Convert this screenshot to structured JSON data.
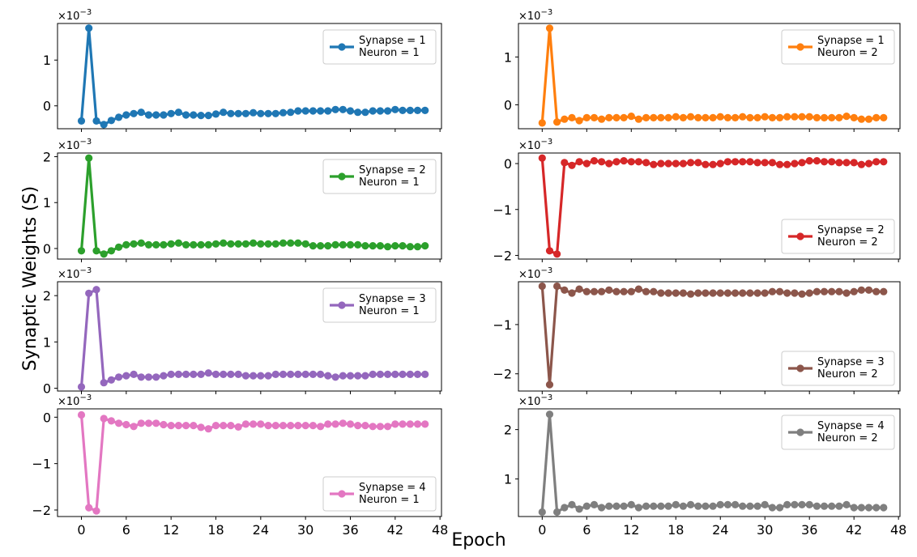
{
  "figure": {
    "ylabel": "Synaptic Weights (S)",
    "xlabel": "Epoch",
    "multiplier_base": "×10",
    "multiplier_exp": "−3"
  },
  "chart_data": [
    {
      "type": "line",
      "name": "Synapse = 1 / Neuron = 1",
      "legend": [
        "Synapse = 1",
        "Neuron = 1"
      ],
      "color": "#1f77b4",
      "legend_pos": "top-right",
      "xlim": [
        -3.2,
        48.2
      ],
      "ylim": [
        -0.5,
        1.8
      ],
      "yticks": [
        {
          "v": 0,
          "l": "0"
        },
        {
          "v": 1,
          "l": "1"
        }
      ],
      "show_xticklabels": false,
      "x": [
        0,
        1,
        2,
        3,
        4,
        5,
        6,
        7,
        8,
        9,
        10,
        11,
        12,
        13,
        14,
        15,
        16,
        17,
        18,
        19,
        20,
        21,
        22,
        23,
        24,
        25,
        26,
        27,
        28,
        29,
        30,
        31,
        32,
        33,
        34,
        35,
        36,
        37,
        38,
        39,
        40,
        41,
        42,
        43,
        44,
        45,
        46
      ],
      "y": [
        -0.33,
        1.7,
        -0.33,
        -0.41,
        -0.32,
        -0.25,
        -0.2,
        -0.17,
        -0.14,
        -0.2,
        -0.2,
        -0.2,
        -0.17,
        -0.14,
        -0.2,
        -0.2,
        -0.21,
        -0.21,
        -0.18,
        -0.14,
        -0.17,
        -0.17,
        -0.17,
        -0.15,
        -0.17,
        -0.17,
        -0.17,
        -0.15,
        -0.14,
        -0.11,
        -0.11,
        -0.11,
        -0.11,
        -0.11,
        -0.08,
        -0.08,
        -0.11,
        -0.14,
        -0.14,
        -0.11,
        -0.11,
        -0.11,
        -0.08,
        -0.1,
        -0.1,
        -0.1,
        -0.1
      ]
    },
    {
      "type": "line",
      "name": "Synapse = 1 / Neuron = 2",
      "legend": [
        "Synapse = 1",
        "Neuron = 2"
      ],
      "color": "#ff7f0e",
      "legend_pos": "top-right",
      "xlim": [
        -3.2,
        48.2
      ],
      "ylim": [
        -0.5,
        1.7
      ],
      "yticks": [
        {
          "v": 0,
          "l": "0"
        },
        {
          "v": 1,
          "l": "1"
        }
      ],
      "show_xticklabels": false,
      "x": [
        0,
        1,
        2,
        3,
        4,
        5,
        6,
        7,
        8,
        9,
        10,
        11,
        12,
        13,
        14,
        15,
        16,
        17,
        18,
        19,
        20,
        21,
        22,
        23,
        24,
        25,
        26,
        27,
        28,
        29,
        30,
        31,
        32,
        33,
        34,
        35,
        36,
        37,
        38,
        39,
        40,
        41,
        42,
        43,
        44,
        45,
        46
      ],
      "y": [
        -0.38,
        1.6,
        -0.36,
        -0.3,
        -0.27,
        -0.33,
        -0.27,
        -0.27,
        -0.3,
        -0.27,
        -0.27,
        -0.27,
        -0.24,
        -0.3,
        -0.27,
        -0.27,
        -0.27,
        -0.27,
        -0.25,
        -0.27,
        -0.25,
        -0.27,
        -0.27,
        -0.27,
        -0.25,
        -0.27,
        -0.27,
        -0.25,
        -0.27,
        -0.27,
        -0.25,
        -0.27,
        -0.27,
        -0.25,
        -0.25,
        -0.25,
        -0.25,
        -0.27,
        -0.27,
        -0.27,
        -0.27,
        -0.24,
        -0.27,
        -0.3,
        -0.3,
        -0.27,
        -0.27
      ]
    },
    {
      "type": "line",
      "name": "Synapse = 2 / Neuron = 1",
      "legend": [
        "Synapse = 2",
        "Neuron = 1"
      ],
      "color": "#2ca02c",
      "legend_pos": "top-right",
      "xlim": [
        -3.2,
        48.2
      ],
      "ylim": [
        -0.23,
        2.08
      ],
      "yticks": [
        {
          "v": 0,
          "l": "0"
        },
        {
          "v": 1,
          "l": "1"
        },
        {
          "v": 2,
          "l": "2"
        }
      ],
      "show_xticklabels": false,
      "x": [
        0,
        1,
        2,
        3,
        4,
        5,
        6,
        7,
        8,
        9,
        10,
        11,
        12,
        13,
        14,
        15,
        16,
        17,
        18,
        19,
        20,
        21,
        22,
        23,
        24,
        25,
        26,
        27,
        28,
        29,
        30,
        31,
        32,
        33,
        34,
        35,
        36,
        37,
        38,
        39,
        40,
        41,
        42,
        43,
        44,
        45,
        46
      ],
      "y": [
        -0.05,
        1.97,
        -0.05,
        -0.12,
        -0.05,
        0.03,
        0.08,
        0.1,
        0.12,
        0.08,
        0.08,
        0.08,
        0.1,
        0.12,
        0.08,
        0.08,
        0.08,
        0.08,
        0.1,
        0.12,
        0.1,
        0.1,
        0.1,
        0.12,
        0.1,
        0.1,
        0.1,
        0.12,
        0.12,
        0.12,
        0.1,
        0.06,
        0.06,
        0.06,
        0.08,
        0.08,
        0.08,
        0.08,
        0.06,
        0.06,
        0.06,
        0.04,
        0.06,
        0.06,
        0.04,
        0.04,
        0.06
      ]
    },
    {
      "type": "line",
      "name": "Synapse = 2 / Neuron = 2",
      "legend": [
        "Synapse = 2",
        "Neuron = 2"
      ],
      "color": "#d62728",
      "legend_pos": "bottom-right",
      "xlim": [
        -3.2,
        48.2
      ],
      "ylim": [
        -2.08,
        0.23
      ],
      "yticks": [
        {
          "v": 0,
          "l": "0"
        },
        {
          "v": -1,
          "l": "−1"
        },
        {
          "v": -2,
          "l": "−2"
        }
      ],
      "show_xticklabels": false,
      "x": [
        0,
        1,
        2,
        3,
        4,
        5,
        6,
        7,
        8,
        9,
        10,
        11,
        12,
        13,
        14,
        15,
        16,
        17,
        18,
        19,
        20,
        21,
        22,
        23,
        24,
        25,
        26,
        27,
        28,
        29,
        30,
        31,
        32,
        33,
        34,
        35,
        36,
        37,
        38,
        39,
        40,
        41,
        42,
        43,
        44,
        45,
        46
      ],
      "y": [
        0.12,
        -1.9,
        -1.97,
        0.02,
        -0.04,
        0.04,
        0.0,
        0.06,
        0.04,
        0.0,
        0.04,
        0.06,
        0.04,
        0.04,
        0.02,
        -0.02,
        0.0,
        0.0,
        0.0,
        0.0,
        0.02,
        0.02,
        -0.02,
        -0.02,
        0.0,
        0.04,
        0.04,
        0.04,
        0.04,
        0.02,
        0.02,
        0.02,
        -0.02,
        -0.02,
        0.0,
        0.02,
        0.06,
        0.06,
        0.04,
        0.04,
        0.02,
        0.02,
        0.02,
        -0.02,
        0.0,
        0.04,
        0.04
      ]
    },
    {
      "type": "line",
      "name": "Synapse = 3 / Neuron = 1",
      "legend": [
        "Synapse = 3",
        "Neuron = 1"
      ],
      "color": "#9467bd",
      "legend_pos": "top-right",
      "xlim": [
        -3.2,
        48.2
      ],
      "ylim": [
        -0.06,
        2.3
      ],
      "yticks": [
        {
          "v": 0,
          "l": "0"
        },
        {
          "v": 1,
          "l": "1"
        },
        {
          "v": 2,
          "l": "2"
        }
      ],
      "show_xticklabels": false,
      "x": [
        0,
        1,
        2,
        3,
        4,
        5,
        6,
        7,
        8,
        9,
        10,
        11,
        12,
        13,
        14,
        15,
        16,
        17,
        18,
        19,
        20,
        21,
        22,
        23,
        24,
        25,
        26,
        27,
        28,
        29,
        30,
        31,
        32,
        33,
        34,
        35,
        36,
        37,
        38,
        39,
        40,
        41,
        42,
        43,
        44,
        45,
        46
      ],
      "y": [
        0.03,
        2.05,
        2.13,
        0.12,
        0.18,
        0.24,
        0.27,
        0.3,
        0.24,
        0.24,
        0.24,
        0.27,
        0.3,
        0.3,
        0.3,
        0.3,
        0.3,
        0.33,
        0.3,
        0.3,
        0.3,
        0.3,
        0.27,
        0.27,
        0.27,
        0.27,
        0.3,
        0.3,
        0.3,
        0.3,
        0.3,
        0.3,
        0.3,
        0.27,
        0.24,
        0.27,
        0.27,
        0.27,
        0.27,
        0.3,
        0.3,
        0.3,
        0.3,
        0.3,
        0.3,
        0.3,
        0.3
      ]
    },
    {
      "type": "line",
      "name": "Synapse = 3 / Neuron = 2",
      "legend": [
        "Synapse = 3",
        "Neuron = 2"
      ],
      "color": "#8c564b",
      "legend_pos": "bottom-right",
      "xlim": [
        -3.2,
        48.2
      ],
      "ylim": [
        -2.35,
        -0.13
      ],
      "yticks": [
        {
          "v": -1,
          "l": "−1"
        },
        {
          "v": -2,
          "l": "−2"
        }
      ],
      "show_xticklabels": false,
      "x": [
        0,
        1,
        2,
        3,
        4,
        5,
        6,
        7,
        8,
        9,
        10,
        11,
        12,
        13,
        14,
        15,
        16,
        17,
        18,
        19,
        20,
        21,
        22,
        23,
        24,
        25,
        26,
        27,
        28,
        29,
        30,
        31,
        32,
        33,
        34,
        35,
        36,
        37,
        38,
        39,
        40,
        41,
        42,
        43,
        44,
        45,
        46
      ],
      "y": [
        -0.22,
        -2.22,
        -0.22,
        -0.3,
        -0.36,
        -0.28,
        -0.33,
        -0.33,
        -0.33,
        -0.3,
        -0.33,
        -0.33,
        -0.33,
        -0.28,
        -0.33,
        -0.33,
        -0.36,
        -0.36,
        -0.36,
        -0.36,
        -0.38,
        -0.36,
        -0.36,
        -0.36,
        -0.36,
        -0.36,
        -0.36,
        -0.36,
        -0.36,
        -0.36,
        -0.36,
        -0.33,
        -0.33,
        -0.36,
        -0.36,
        -0.38,
        -0.36,
        -0.33,
        -0.33,
        -0.33,
        -0.33,
        -0.36,
        -0.33,
        -0.3,
        -0.3,
        -0.33,
        -0.33
      ]
    },
    {
      "type": "line",
      "name": "Synapse = 4 / Neuron = 1",
      "legend": [
        "Synapse = 4",
        "Neuron = 1"
      ],
      "color": "#e377c2",
      "legend_pos": "bottom-right",
      "xlim": [
        -3.2,
        48.2
      ],
      "ylim": [
        -2.14,
        0.18
      ],
      "yticks": [
        {
          "v": 0,
          "l": "0"
        },
        {
          "v": -1,
          "l": "−1"
        },
        {
          "v": -2,
          "l": "−2"
        }
      ],
      "show_xticklabels": true,
      "xticks": [
        {
          "v": 0,
          "l": "0"
        },
        {
          "v": 6,
          "l": "6"
        },
        {
          "v": 12,
          "l": "12"
        },
        {
          "v": 18,
          "l": "18"
        },
        {
          "v": 24,
          "l": "24"
        },
        {
          "v": 30,
          "l": "30"
        },
        {
          "v": 36,
          "l": "36"
        },
        {
          "v": 42,
          "l": "42"
        },
        {
          "v": 48,
          "l": "48"
        }
      ],
      "x": [
        0,
        1,
        2,
        3,
        4,
        5,
        6,
        7,
        8,
        9,
        10,
        11,
        12,
        13,
        14,
        15,
        16,
        17,
        18,
        19,
        20,
        21,
        22,
        23,
        24,
        25,
        26,
        27,
        28,
        29,
        30,
        31,
        32,
        33,
        34,
        35,
        36,
        37,
        38,
        39,
        40,
        41,
        42,
        43,
        44,
        45,
        46
      ],
      "y": [
        0.05,
        -1.95,
        -2.02,
        -0.03,
        -0.08,
        -0.13,
        -0.16,
        -0.2,
        -0.13,
        -0.13,
        -0.13,
        -0.16,
        -0.18,
        -0.18,
        -0.18,
        -0.18,
        -0.22,
        -0.25,
        -0.18,
        -0.18,
        -0.18,
        -0.21,
        -0.15,
        -0.15,
        -0.15,
        -0.18,
        -0.18,
        -0.18,
        -0.18,
        -0.18,
        -0.18,
        -0.18,
        -0.2,
        -0.15,
        -0.15,
        -0.13,
        -0.15,
        -0.18,
        -0.18,
        -0.2,
        -0.2,
        -0.2,
        -0.15,
        -0.15,
        -0.15,
        -0.15,
        -0.15
      ]
    },
    {
      "type": "line",
      "name": "Synapse = 4 / Neuron = 2",
      "legend": [
        "Synapse = 4",
        "Neuron = 2"
      ],
      "color": "#7f7f7f",
      "legend_pos": "top-right",
      "xlim": [
        -3.2,
        48.2
      ],
      "ylim": [
        0.24,
        2.42
      ],
      "yticks": [
        {
          "v": 1,
          "l": "1"
        },
        {
          "v": 2,
          "l": "2"
        }
      ],
      "show_xticklabels": true,
      "xticks": [
        {
          "v": 0,
          "l": "0"
        },
        {
          "v": 6,
          "l": "6"
        },
        {
          "v": 12,
          "l": "12"
        },
        {
          "v": 18,
          "l": "18"
        },
        {
          "v": 24,
          "l": "24"
        },
        {
          "v": 30,
          "l": "30"
        },
        {
          "v": 36,
          "l": "36"
        },
        {
          "v": 42,
          "l": "42"
        },
        {
          "v": 48,
          "l": "48"
        }
      ],
      "x": [
        0,
        1,
        2,
        3,
        4,
        5,
        6,
        7,
        8,
        9,
        10,
        11,
        12,
        13,
        14,
        15,
        16,
        17,
        18,
        19,
        20,
        21,
        22,
        23,
        24,
        25,
        26,
        27,
        28,
        29,
        30,
        31,
        32,
        33,
        34,
        35,
        36,
        37,
        38,
        39,
        40,
        41,
        42,
        43,
        44,
        45,
        46
      ],
      "y": [
        0.33,
        2.31,
        0.33,
        0.42,
        0.48,
        0.39,
        0.45,
        0.48,
        0.42,
        0.45,
        0.45,
        0.45,
        0.48,
        0.42,
        0.45,
        0.45,
        0.45,
        0.45,
        0.48,
        0.45,
        0.48,
        0.45,
        0.45,
        0.45,
        0.48,
        0.48,
        0.48,
        0.45,
        0.45,
        0.45,
        0.48,
        0.42,
        0.42,
        0.48,
        0.48,
        0.48,
        0.48,
        0.45,
        0.45,
        0.45,
        0.45,
        0.48,
        0.42,
        0.42,
        0.42,
        0.42,
        0.42
      ]
    }
  ]
}
